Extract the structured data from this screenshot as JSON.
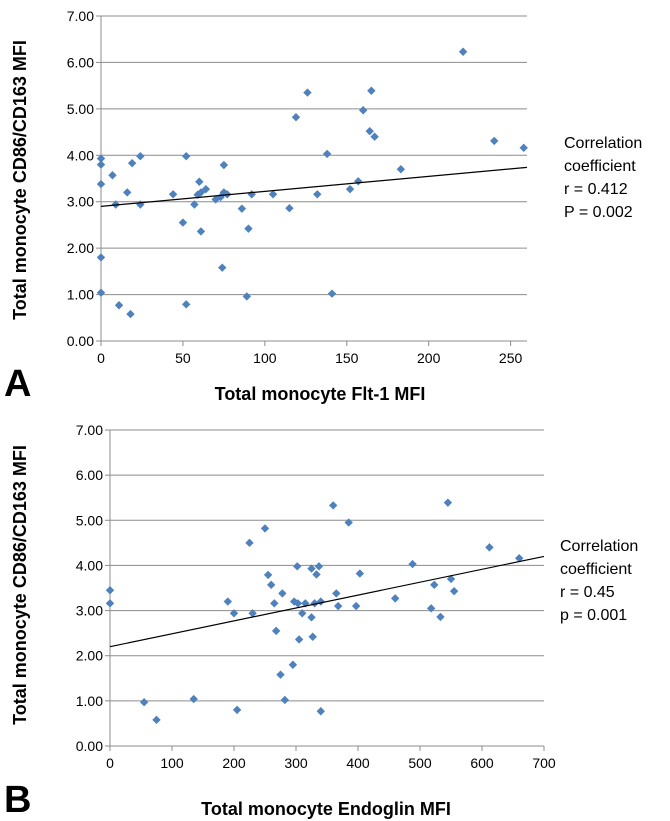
{
  "chart_data": [
    {
      "type": "scatter",
      "panel_label": "A",
      "xlabel": "Total monocyte Flt-1 MFI",
      "ylabel": "Total monocyte CD86/CD163 MFI",
      "xlim": [
        0,
        260
      ],
      "ylim": [
        0,
        7
      ],
      "x_ticks": [
        0,
        50,
        100,
        150,
        200,
        250
      ],
      "y_ticks": [
        "0.00",
        "1.00",
        "2.00",
        "3.00",
        "4.00",
        "5.00",
        "6.00",
        "7.00"
      ],
      "grid": "horizontal",
      "marker_color": "#4F81BD",
      "trendline": {
        "x": [
          0,
          260
        ],
        "y": [
          2.9,
          3.74
        ]
      },
      "annotation": [
        "Correlation",
        "coefficient",
        "r = 0.412",
        "P = 0.002"
      ],
      "points": [
        {
          "x": 0,
          "y": 3.93
        },
        {
          "x": 0,
          "y": 3.8
        },
        {
          "x": 0,
          "y": 3.38
        },
        {
          "x": 0,
          "y": 1.8
        },
        {
          "x": 0,
          "y": 1.04
        },
        {
          "x": 7,
          "y": 3.57
        },
        {
          "x": 9,
          "y": 2.94
        },
        {
          "x": 11,
          "y": 0.77
        },
        {
          "x": 16,
          "y": 3.2
        },
        {
          "x": 18,
          "y": 0.58
        },
        {
          "x": 19,
          "y": 3.83
        },
        {
          "x": 24,
          "y": 3.98
        },
        {
          "x": 24,
          "y": 2.94
        },
        {
          "x": 44,
          "y": 3.16
        },
        {
          "x": 50,
          "y": 2.55
        },
        {
          "x": 52,
          "y": 3.98
        },
        {
          "x": 52,
          "y": 0.79
        },
        {
          "x": 57,
          "y": 2.94
        },
        {
          "x": 59,
          "y": 3.15
        },
        {
          "x": 60,
          "y": 3.43
        },
        {
          "x": 61,
          "y": 2.36
        },
        {
          "x": 61,
          "y": 3.2
        },
        {
          "x": 64,
          "y": 3.27
        },
        {
          "x": 70,
          "y": 3.05
        },
        {
          "x": 73,
          "y": 3.1
        },
        {
          "x": 74,
          "y": 1.58
        },
        {
          "x": 75,
          "y": 3.79
        },
        {
          "x": 75,
          "y": 3.2
        },
        {
          "x": 77,
          "y": 3.16
        },
        {
          "x": 86,
          "y": 2.85
        },
        {
          "x": 89,
          "y": 0.96
        },
        {
          "x": 90,
          "y": 2.42
        },
        {
          "x": 92,
          "y": 3.16
        },
        {
          "x": 105,
          "y": 3.16
        },
        {
          "x": 115,
          "y": 2.86
        },
        {
          "x": 119,
          "y": 4.82
        },
        {
          "x": 126,
          "y": 5.35
        },
        {
          "x": 132,
          "y": 3.16
        },
        {
          "x": 138,
          "y": 4.03
        },
        {
          "x": 141,
          "y": 1.02
        },
        {
          "x": 152,
          "y": 3.27
        },
        {
          "x": 157,
          "y": 3.44
        },
        {
          "x": 160,
          "y": 4.97
        },
        {
          "x": 164,
          "y": 4.52
        },
        {
          "x": 165,
          "y": 5.39
        },
        {
          "x": 167,
          "y": 4.4
        },
        {
          "x": 183,
          "y": 3.7
        },
        {
          "x": 221,
          "y": 6.23
        },
        {
          "x": 240,
          "y": 4.31
        },
        {
          "x": 258,
          "y": 4.16
        }
      ]
    },
    {
      "type": "scatter",
      "panel_label": "B",
      "xlabel": "Total monocyte Endoglin MFI",
      "ylabel": "Total monocyte CD86/CD163 MFI",
      "xlim": [
        0,
        700
      ],
      "ylim": [
        0,
        7
      ],
      "x_ticks": [
        0,
        100,
        200,
        300,
        400,
        500,
        600,
        700
      ],
      "y_ticks": [
        "0.00",
        "1.00",
        "2.00",
        "3.00",
        "4.00",
        "5.00",
        "6.00",
        "7.00"
      ],
      "grid": "horizontal",
      "marker_color": "#4F81BD",
      "trendline": {
        "x": [
          0,
          700
        ],
        "y": [
          2.2,
          4.2
        ]
      },
      "annotation": [
        "Correlation",
        "coefficient",
        "r = 0.45",
        "p = 0.001"
      ],
      "points": [
        {
          "x": 0,
          "y": 3.45
        },
        {
          "x": 0,
          "y": 3.16
        },
        {
          "x": 55,
          "y": 0.97
        },
        {
          "x": 75,
          "y": 0.58
        },
        {
          "x": 135,
          "y": 1.04
        },
        {
          "x": 190,
          "y": 3.2
        },
        {
          "x": 200,
          "y": 2.94
        },
        {
          "x": 205,
          "y": 0.8
        },
        {
          "x": 225,
          "y": 4.5
        },
        {
          "x": 230,
          "y": 2.94
        },
        {
          "x": 250,
          "y": 4.82
        },
        {
          "x": 255,
          "y": 3.79
        },
        {
          "x": 260,
          "y": 3.57
        },
        {
          "x": 265,
          "y": 3.16
        },
        {
          "x": 268,
          "y": 2.55
        },
        {
          "x": 275,
          "y": 1.58
        },
        {
          "x": 278,
          "y": 3.38
        },
        {
          "x": 282,
          "y": 1.02
        },
        {
          "x": 295,
          "y": 1.8
        },
        {
          "x": 297,
          "y": 3.2
        },
        {
          "x": 302,
          "y": 3.98
        },
        {
          "x": 303,
          "y": 3.16
        },
        {
          "x": 305,
          "y": 2.36
        },
        {
          "x": 310,
          "y": 2.94
        },
        {
          "x": 315,
          "y": 3.16
        },
        {
          "x": 325,
          "y": 2.85
        },
        {
          "x": 325,
          "y": 3.93
        },
        {
          "x": 327,
          "y": 2.42
        },
        {
          "x": 330,
          "y": 3.16
        },
        {
          "x": 333,
          "y": 3.8
        },
        {
          "x": 337,
          "y": 3.98
        },
        {
          "x": 340,
          "y": 3.2
        },
        {
          "x": 340,
          "y": 0.77
        },
        {
          "x": 360,
          "y": 5.33
        },
        {
          "x": 365,
          "y": 3.38
        },
        {
          "x": 368,
          "y": 3.1
        },
        {
          "x": 385,
          "y": 4.95
        },
        {
          "x": 397,
          "y": 3.1
        },
        {
          "x": 403,
          "y": 3.82
        },
        {
          "x": 460,
          "y": 3.27
        },
        {
          "x": 488,
          "y": 4.03
        },
        {
          "x": 518,
          "y": 3.05
        },
        {
          "x": 523,
          "y": 3.57
        },
        {
          "x": 533,
          "y": 2.86
        },
        {
          "x": 545,
          "y": 5.39
        },
        {
          "x": 550,
          "y": 3.7
        },
        {
          "x": 555,
          "y": 3.43
        },
        {
          "x": 612,
          "y": 4.4
        },
        {
          "x": 660,
          "y": 4.16
        }
      ]
    }
  ]
}
